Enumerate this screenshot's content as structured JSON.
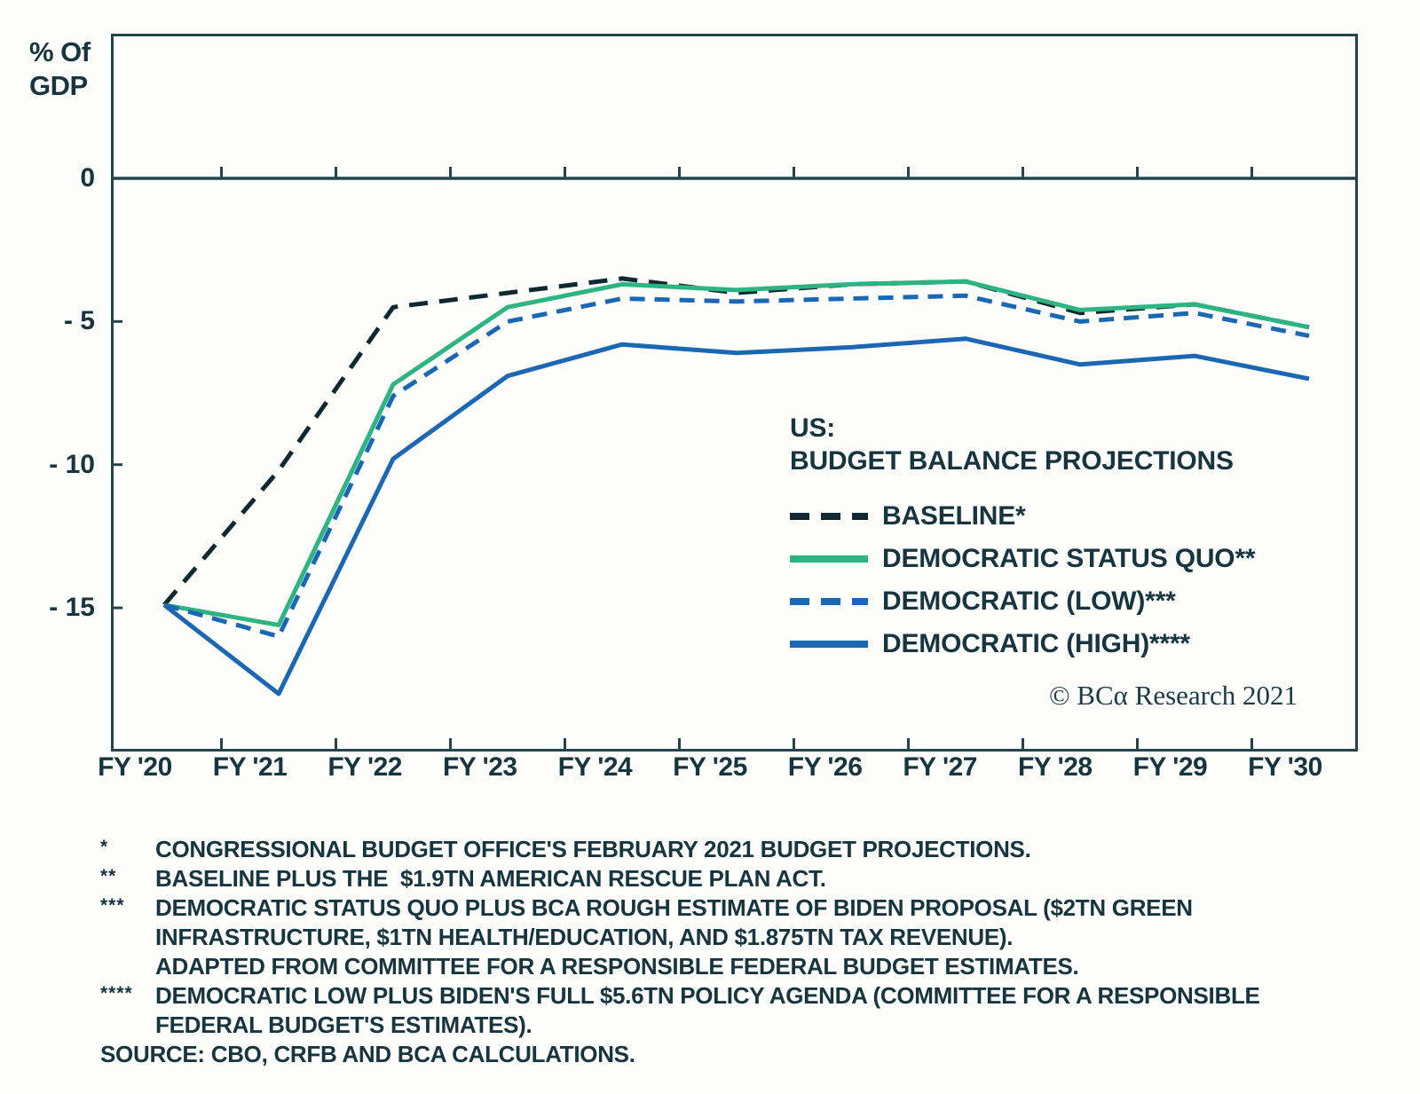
{
  "figure": {
    "ylabel_lines": [
      "% Of",
      "GDP"
    ],
    "copyright": "© BCα Research 2021",
    "background": "#fdfdfb"
  },
  "colors": {
    "text": "#16353f",
    "axis": "#24444b",
    "baseline_line": "#10282f",
    "green_line": "#2db482",
    "blue_line": "#1a67b3"
  },
  "legend": {
    "title_lines": [
      "US:",
      "BUDGET BALANCE PROJECTIONS"
    ]
  },
  "chart_data": {
    "type": "line",
    "title": "US: BUDGET BALANCE PROJECTIONS",
    "xlabel": "",
    "ylabel": "% Of GDP",
    "ylim": [
      -20,
      5
    ],
    "grid": false,
    "legend_position": "middle-right",
    "categories": [
      "FY '20",
      "FY '21",
      "FY '22",
      "FY '23",
      "FY '24",
      "FY '25",
      "FY '26",
      "FY '27",
      "FY '28",
      "FY '29",
      "FY '30"
    ],
    "yticks": [
      0,
      -5,
      -10,
      -15
    ],
    "ytick_labels": [
      "0",
      "- 5",
      "- 10",
      "- 15"
    ],
    "series": [
      {
        "name": "BASELINE*",
        "style": "dashed",
        "color": "#10282f",
        "dash": [
          21,
          13
        ],
        "values": [
          -14.9,
          -10.2,
          -4.5,
          -4.0,
          -3.5,
          -4.0,
          -3.7,
          -3.6,
          -4.7,
          -4.4,
          -5.2
        ]
      },
      {
        "name": "DEMOCRATIC STATUS QUO**",
        "style": "solid",
        "color": "#2db482",
        "dash": null,
        "values": [
          -14.9,
          -15.6,
          -7.2,
          -4.5,
          -3.7,
          -3.9,
          -3.7,
          -3.6,
          -4.6,
          -4.4,
          -5.2
        ]
      },
      {
        "name": "DEMOCRATIC (LOW)***",
        "style": "dashed",
        "color": "#1a67b3",
        "dash": [
          17,
          11
        ],
        "values": [
          -14.9,
          -16.0,
          -7.6,
          -5.0,
          -4.2,
          -4.3,
          -4.2,
          -4.1,
          -5.0,
          -4.7,
          -5.5
        ]
      },
      {
        "name": "DEMOCRATIC (HIGH)****",
        "style": "solid",
        "color": "#1a67b3",
        "dash": null,
        "values": [
          -14.9,
          -18.0,
          -9.8,
          -6.9,
          -5.8,
          -6.1,
          -5.9,
          -5.6,
          -6.5,
          -6.2,
          -7.0
        ]
      }
    ]
  },
  "footnotes": {
    "rows": [
      {
        "marker": "*",
        "text": "CONGRESSIONAL BUDGET OFFICE'S FEBRUARY 2021 BUDGET PROJECTIONS."
      },
      {
        "marker": "**",
        "text": "BASELINE PLUS THE  $1.9TN AMERICAN RESCUE PLAN ACT."
      },
      {
        "marker": "***",
        "text": "DEMOCRATIC STATUS QUO PLUS BCA ROUGH ESTIMATE OF BIDEN PROPOSAL ($2TN GREEN"
      },
      {
        "marker": "",
        "text": "INFRASTRUCTURE, $1TN HEALTH/EDUCATION, AND $1.875TN TAX REVENUE)."
      },
      {
        "marker": "",
        "text": "ADAPTED FROM COMMITTEE FOR A RESPONSIBLE FEDERAL BUDGET ESTIMATES."
      },
      {
        "marker": "****",
        "text": "DEMOCRATIC LOW PLUS BIDEN'S FULL $5.6TN POLICY AGENDA (COMMITTEE FOR A RESPONSIBLE"
      },
      {
        "marker": "",
        "text": "FEDERAL BUDGET'S ESTIMATES)."
      }
    ],
    "source": "SOURCE: CBO, CRFB AND BCA CALCULATIONS."
  }
}
